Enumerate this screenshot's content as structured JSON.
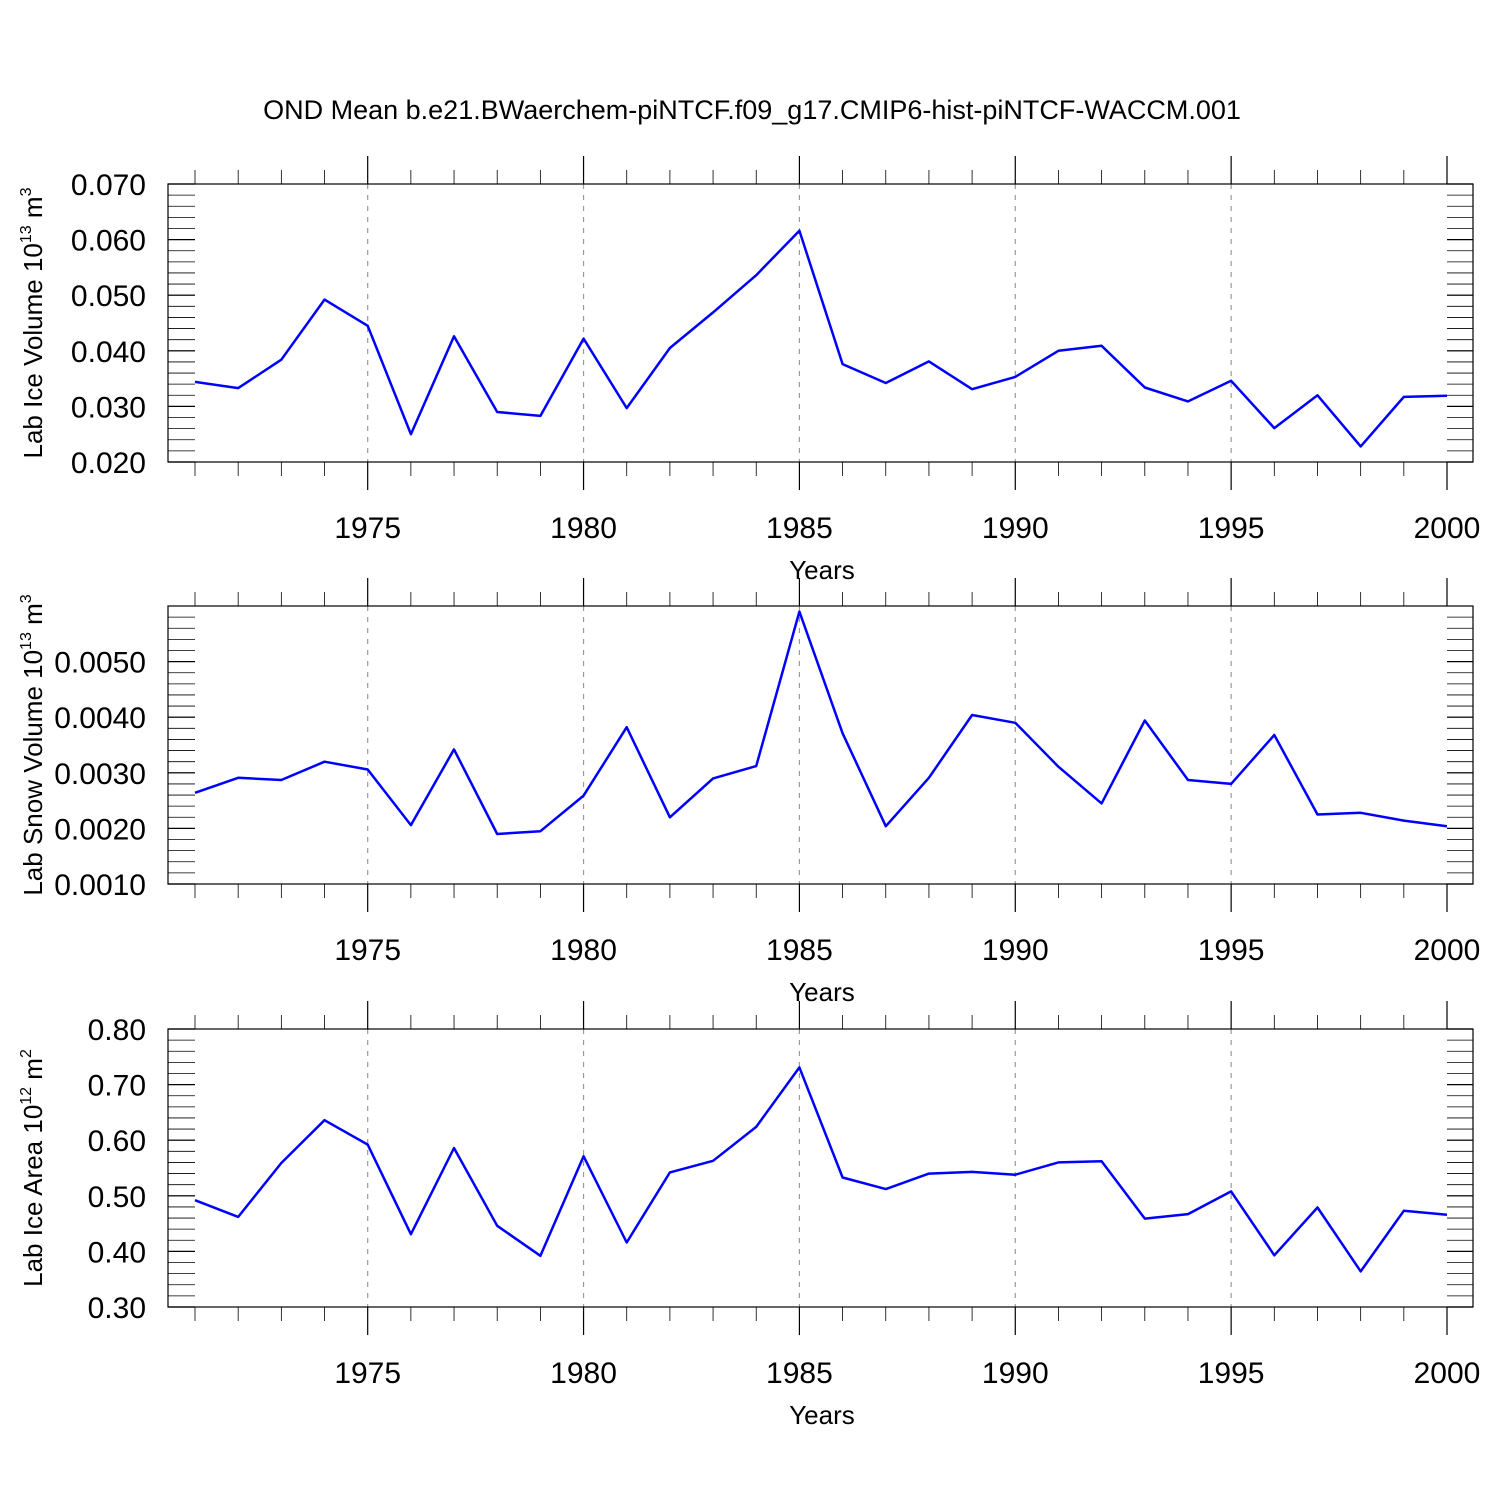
{
  "figure": {
    "title": "OND Mean b.e21.BWaerchem-piNTCF.f09_g17.CMIP6-hist-piNTCF-WACCM.001",
    "line_color": "#0000ff",
    "grid_color": "#999999"
  },
  "chart_data": [
    {
      "type": "line",
      "ylabel_main": "Lab Ice Volume 10",
      "ylabel_exp": "13",
      "ylabel_unit": " m",
      "ylabel_unit_exp": "3",
      "xlabel": "Years",
      "xlim": [
        1971,
        2000
      ],
      "ylim": [
        0.02,
        0.07
      ],
      "x_ticks": [
        1975,
        1980,
        1985,
        1990,
        1995,
        2000
      ],
      "y_ticks": [
        0.02,
        0.03,
        0.04,
        0.05,
        0.06,
        0.07
      ],
      "y_tick_labels": [
        "0.020",
        "0.030",
        "0.040",
        "0.050",
        "0.060",
        "0.070"
      ],
      "y_minor_step": 0.002,
      "x": [
        1971,
        1972,
        1973,
        1974,
        1975,
        1976,
        1977,
        1978,
        1979,
        1980,
        1981,
        1982,
        1983,
        1984,
        1985,
        1986,
        1987,
        1988,
        1989,
        1990,
        1991,
        1992,
        1993,
        1994,
        1995,
        1996,
        1997,
        1998,
        1999,
        2000
      ],
      "series": [
        {
          "name": "Lab Ice Volume",
          "values": [
            0.0344,
            0.0333,
            0.0384,
            0.0492,
            0.0445,
            0.025,
            0.0426,
            0.029,
            0.0283,
            0.0422,
            0.0297,
            0.0405,
            0.0469,
            0.0536,
            0.0616,
            0.0376,
            0.0342,
            0.0381,
            0.0331,
            0.0353,
            0.04,
            0.0409,
            0.0334,
            0.0309,
            0.0346,
            0.0261,
            0.032,
            0.0228,
            0.0317,
            0.0319
          ]
        }
      ]
    },
    {
      "type": "line",
      "ylabel_main": "Lab Snow Volume 10",
      "ylabel_exp": "13",
      "ylabel_unit": " m",
      "ylabel_unit_exp": "3",
      "xlabel": "Years",
      "xlim": [
        1971,
        2000
      ],
      "ylim": [
        0.001,
        0.006
      ],
      "x_ticks": [
        1975,
        1980,
        1985,
        1990,
        1995,
        2000
      ],
      "y_ticks": [
        0.001,
        0.002,
        0.003,
        0.004,
        0.005
      ],
      "y_tick_labels": [
        "0.0010",
        "0.0020",
        "0.0030",
        "0.0040",
        "0.0050"
      ],
      "y_minor_step": 0.0002,
      "x": [
        1971,
        1972,
        1973,
        1974,
        1975,
        1976,
        1977,
        1978,
        1979,
        1980,
        1981,
        1982,
        1983,
        1984,
        1985,
        1986,
        1987,
        1988,
        1989,
        1990,
        1991,
        1992,
        1993,
        1994,
        1995,
        1996,
        1997,
        1998,
        1999,
        2000
      ],
      "series": [
        {
          "name": "Lab Snow Volume",
          "values": [
            0.00264,
            0.00291,
            0.00287,
            0.0032,
            0.00306,
            0.00206,
            0.00342,
            0.0019,
            0.00195,
            0.00259,
            0.00382,
            0.0022,
            0.0029,
            0.00312,
            0.0059,
            0.00371,
            0.00204,
            0.00291,
            0.00404,
            0.0039,
            0.00311,
            0.00245,
            0.00394,
            0.00287,
            0.0028,
            0.00368,
            0.00225,
            0.00228,
            0.00214,
            0.00204
          ]
        }
      ]
    },
    {
      "type": "line",
      "ylabel_main": "Lab Ice Area 10",
      "ylabel_exp": "12",
      "ylabel_unit": " m",
      "ylabel_unit_exp": "2",
      "xlabel": "Years",
      "xlim": [
        1971,
        2000
      ],
      "ylim": [
        0.3,
        0.8
      ],
      "x_ticks": [
        1975,
        1980,
        1985,
        1990,
        1995,
        2000
      ],
      "y_ticks": [
        0.3,
        0.4,
        0.5,
        0.6,
        0.7,
        0.8
      ],
      "y_tick_labels": [
        "0.30",
        "0.40",
        "0.50",
        "0.60",
        "0.70",
        "0.80"
      ],
      "y_minor_step": 0.02,
      "x": [
        1971,
        1972,
        1973,
        1974,
        1975,
        1976,
        1977,
        1978,
        1979,
        1980,
        1981,
        1982,
        1983,
        1984,
        1985,
        1986,
        1987,
        1988,
        1989,
        1990,
        1991,
        1992,
        1993,
        1994,
        1995,
        1996,
        1997,
        1998,
        1999,
        2000
      ],
      "series": [
        {
          "name": "Lab Ice Area",
          "values": [
            0.492,
            0.462,
            0.559,
            0.636,
            0.592,
            0.431,
            0.586,
            0.446,
            0.392,
            0.571,
            0.416,
            0.542,
            0.563,
            0.624,
            0.731,
            0.533,
            0.512,
            0.54,
            0.543,
            0.538,
            0.56,
            0.562,
            0.459,
            0.467,
            0.508,
            0.393,
            0.479,
            0.364,
            0.473,
            0.466
          ]
        }
      ]
    }
  ]
}
